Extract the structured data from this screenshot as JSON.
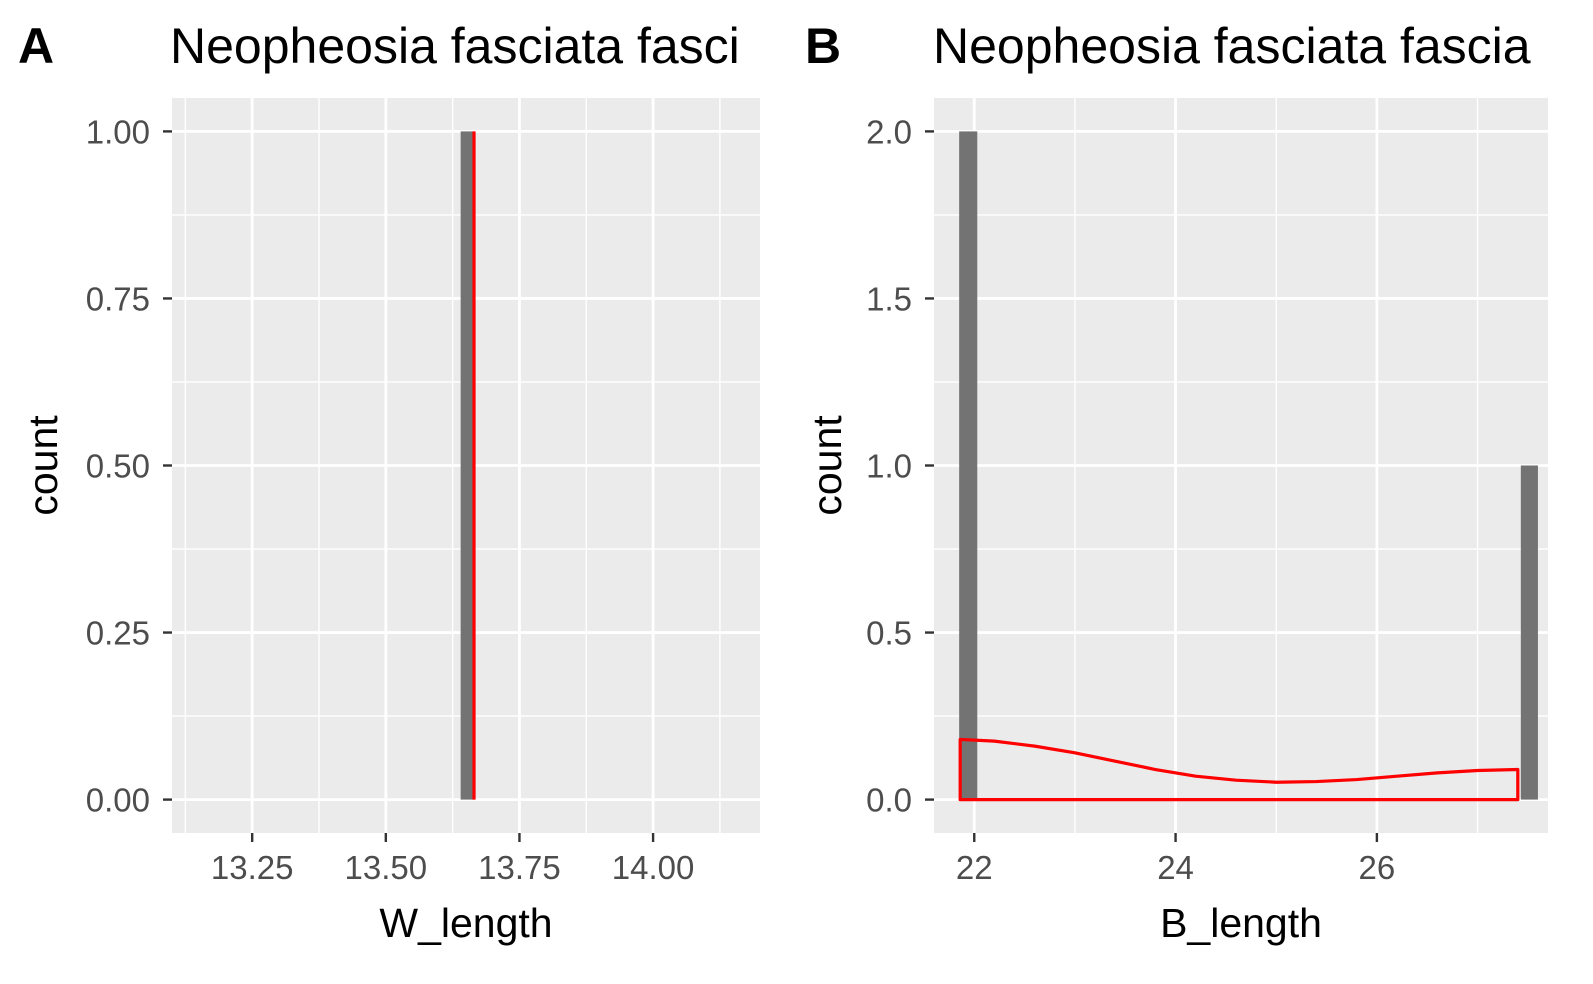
{
  "chart_data": [
    {
      "type": "bar",
      "panel_label": "A",
      "title": "Neopheosia fasciata fasci",
      "xlabel": "W_length",
      "ylabel": "count",
      "xlim": [
        13.1,
        14.2
      ],
      "ylim": [
        -0.05,
        1.05
      ],
      "x_ticks": [
        13.25,
        13.5,
        13.75,
        14.0
      ],
      "x_tick_labels": [
        "13.25",
        "13.50",
        "13.75",
        "14.00"
      ],
      "y_ticks": [
        0,
        0.25,
        0.5,
        0.75,
        1.0
      ],
      "y_tick_labels": [
        "0.00",
        "0.25",
        "0.50",
        "0.75",
        "1.00"
      ],
      "grid": true,
      "bars": [
        {
          "x_start": 13.64,
          "x_end": 13.665,
          "count": 1
        }
      ],
      "overlay": {
        "type": "vline",
        "x": 13.665,
        "y_from": 0,
        "y_to": 1,
        "color": "#ff0000"
      },
      "bar_color": "#737373",
      "panel_color": "#ebebeb"
    },
    {
      "type": "bar",
      "panel_label": "B",
      "title": "Neopheosia fasciata fascia",
      "xlabel": "B_length",
      "ylabel": "count",
      "xlim": [
        21.6,
        27.7
      ],
      "ylim": [
        -0.1,
        2.1
      ],
      "x_ticks": [
        22,
        24,
        26
      ],
      "x_tick_labels": [
        "22",
        "24",
        "26"
      ],
      "y_ticks": [
        0,
        0.5,
        1.0,
        1.5,
        2.0
      ],
      "y_tick_labels": [
        "0.0",
        "0.5",
        "1.0",
        "1.5",
        "2.0"
      ],
      "grid": true,
      "bars": [
        {
          "x_start": 21.85,
          "x_end": 22.03,
          "count": 2
        },
        {
          "x_start": 27.43,
          "x_end": 27.6,
          "count": 1
        }
      ],
      "overlay": {
        "type": "density",
        "color": "#ff0000",
        "x": [
          21.86,
          22.2,
          22.6,
          23.0,
          23.4,
          23.8,
          24.2,
          24.6,
          25.0,
          25.4,
          25.8,
          26.2,
          26.6,
          27.0,
          27.4
        ],
        "y": [
          0.18,
          0.175,
          0.16,
          0.14,
          0.115,
          0.09,
          0.07,
          0.058,
          0.052,
          0.054,
          0.06,
          0.07,
          0.08,
          0.087,
          0.09
        ]
      },
      "bar_color": "#737373",
      "panel_color": "#ebebeb"
    }
  ]
}
